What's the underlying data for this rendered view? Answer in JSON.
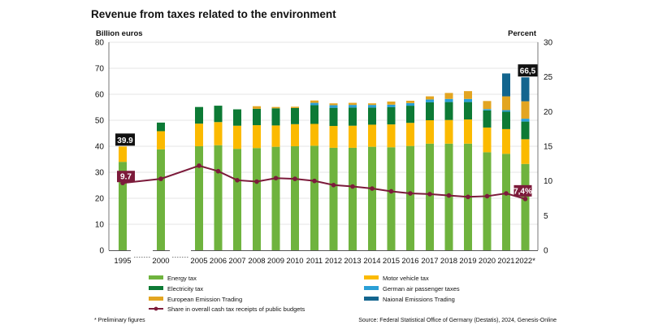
{
  "chart_data": {
    "type": "bar",
    "stacked": true,
    "title": "Revenue from taxes related to the environment",
    "ylabel_left": "Billion euros",
    "ylabel_right": "Percent",
    "ylim_left": [
      0,
      80
    ],
    "ylim_right": [
      0,
      30
    ],
    "yticks_left": [
      0,
      10,
      20,
      30,
      40,
      50,
      60,
      70,
      80
    ],
    "yticks_right": [
      0,
      5,
      10,
      15,
      20,
      25,
      30
    ],
    "grid": true,
    "categories": [
      "1995",
      "2000",
      "2005",
      "2006",
      "2007",
      "2008",
      "2009",
      "2010",
      "2011",
      "2012",
      "2013",
      "2014",
      "2015",
      "2016",
      "2017",
      "2018",
      "2019",
      "2020",
      "2021",
      "2022*"
    ],
    "series": [
      {
        "name": "Energy tax",
        "color": "#6fb33e",
        "values": [
          34,
          38.8,
          40,
          40.4,
          39,
          39.3,
          39.8,
          40,
          40.2,
          39.4,
          39.4,
          39.8,
          39.6,
          40.1,
          41,
          41,
          41,
          37.7,
          37.1,
          33.2
        ]
      },
      {
        "name": "Motor vehicle tax",
        "color": "#fbba00",
        "values": [
          5.9,
          7,
          8.7,
          8.9,
          8.9,
          8.8,
          8.2,
          8.5,
          8.4,
          8.4,
          8.5,
          8.5,
          8.8,
          8.9,
          9,
          9.1,
          9.3,
          9.5,
          9.5,
          9.5
        ]
      },
      {
        "name": "Electricity tax",
        "color": "#0d7a35",
        "values": [
          0,
          3.3,
          6.4,
          6.3,
          6.3,
          6.3,
          6.6,
          6.2,
          7.2,
          7,
          7,
          6.6,
          6.6,
          6.6,
          6.9,
          6.9,
          6.7,
          6.6,
          6.7,
          6.8
        ]
      },
      {
        "name": "German air passenger taxes",
        "color": "#2b9fd6",
        "values": [
          0,
          0,
          0,
          0,
          0,
          0,
          0,
          0,
          0.9,
          1,
          1,
          1,
          1,
          1,
          1.1,
          1.2,
          1.2,
          0.5,
          0.6,
          1.1
        ]
      },
      {
        "name": "European Emission Trading",
        "color": "#e3a521",
        "values": [
          0,
          0,
          0,
          0,
          0,
          1,
          0.5,
          0.5,
          0.9,
          0.7,
          0.8,
          0.6,
          1.2,
          0.9,
          1.2,
          2.3,
          3,
          3.1,
          5.3,
          6.7
        ]
      },
      {
        "name": "Naional Emissions Trading",
        "color": "#13658e",
        "values": [
          0,
          0,
          0,
          0,
          0,
          0,
          0,
          0,
          0,
          0,
          0,
          0,
          0,
          0,
          0,
          0,
          0,
          0,
          8.8,
          9.2
        ]
      }
    ],
    "line_series": {
      "name": "Share in overall cash tax receipts of public budgets",
      "color": "#7c1b3b",
      "values": [
        9.7,
        10.3,
        12.2,
        11.4,
        10.1,
        9.9,
        10.4,
        10.3,
        10,
        9.4,
        9.2,
        8.9,
        8.5,
        8.2,
        8.1,
        7.9,
        7.7,
        7.8,
        8.2,
        7.4
      ]
    },
    "annotations": [
      {
        "category": "1995",
        "label": "39.9",
        "style": "total"
      },
      {
        "category": "1995",
        "label": "9.7",
        "style": "share"
      },
      {
        "category": "2022*",
        "label": "66,5",
        "style": "total"
      },
      {
        "category": "2022*",
        "label": "7,4%",
        "style": "share"
      }
    ],
    "footnote": "* Preliminary figures",
    "source": "Source: Federal Statistical Office of Germany (Destatis), 2024, Genesis-Online"
  }
}
